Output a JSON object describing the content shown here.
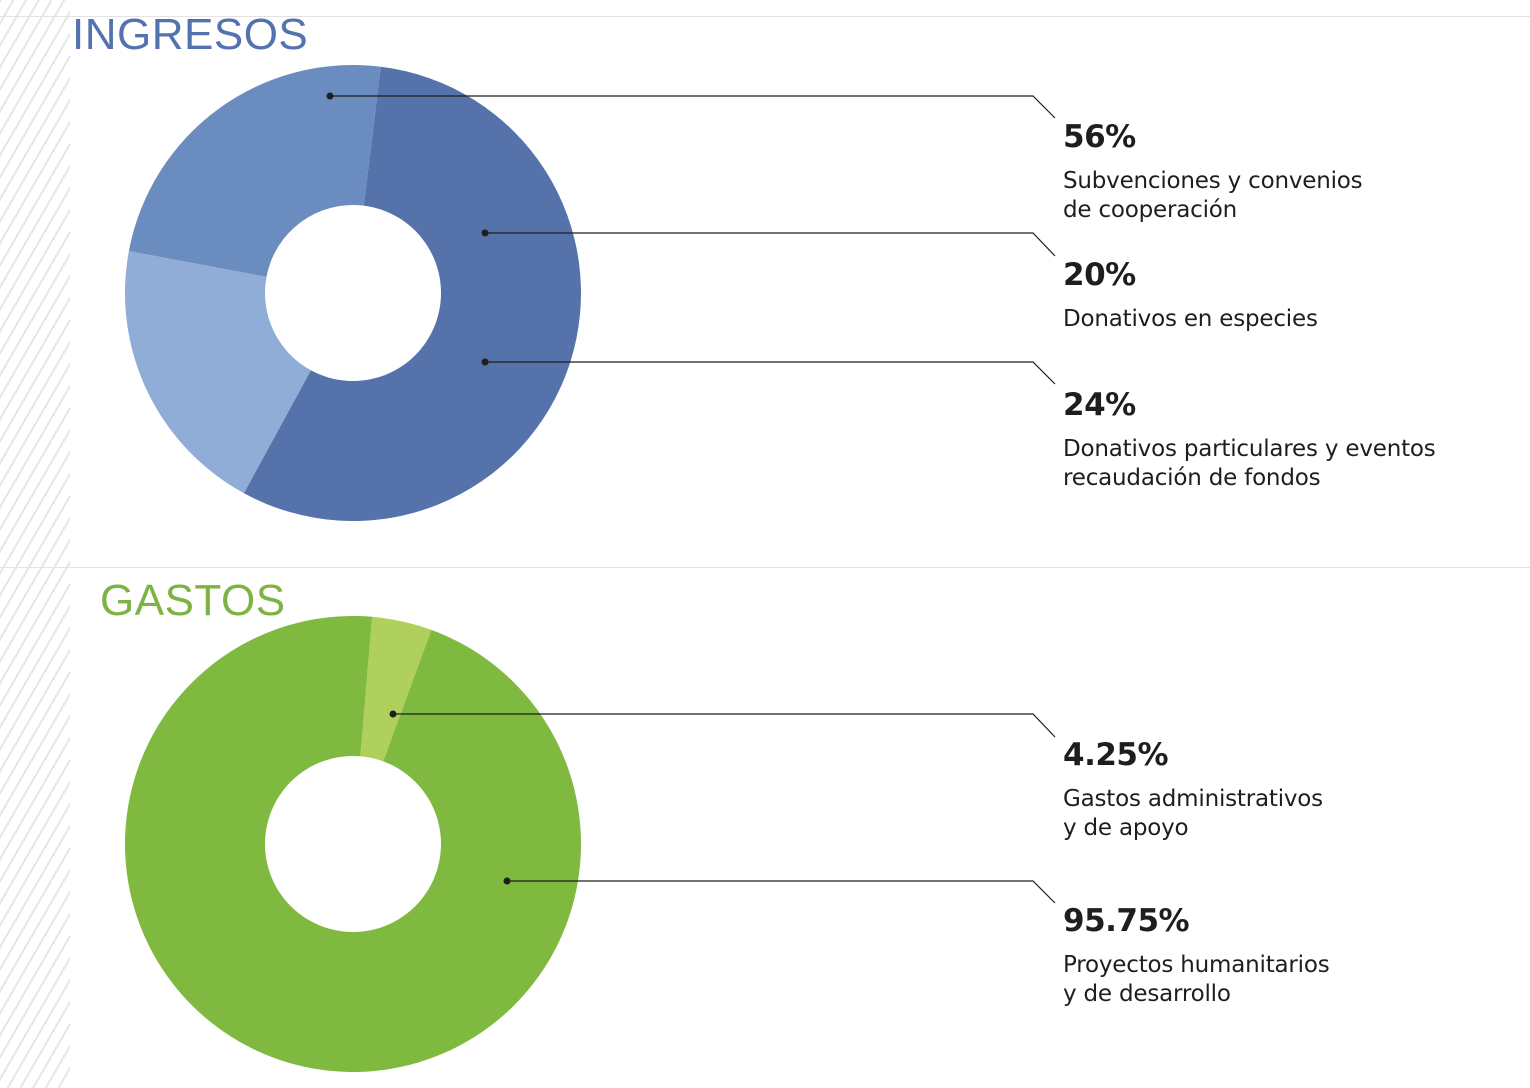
{
  "colors": {
    "ingresos_title": "#5372b0",
    "gastos_title": "#7cb342"
  },
  "chart_data": [
    {
      "type": "pie",
      "title": "INGRESOS",
      "donut": true,
      "start_angle_deg": 7,
      "slices": [
        {
          "label": "Subvenciones y convenios\nde cooperación",
          "value": 56,
          "display": "56%",
          "color": "#5672ab"
        },
        {
          "label": "Donativos en especies",
          "value": 20,
          "display": "20%",
          "color": "#8fadd6"
        },
        {
          "label": "Donativos particulares y eventos\nrecaudación de fondos",
          "value": 24,
          "display": "24%",
          "color": "#6a8cbf"
        }
      ],
      "legend_order": [
        0,
        1,
        2
      ]
    },
    {
      "type": "pie",
      "title": "GASTOS",
      "donut": true,
      "start_angle_deg": 4.8,
      "slices": [
        {
          "label": "Gastos administrativos\ny de apoyo",
          "value": 4.25,
          "display": "4.25%",
          "color": "#b0d05e"
        },
        {
          "label": "Proyectos humanitarios\ny de desarrollo",
          "value": 95.75,
          "display": "95.75%",
          "color": "#80b940"
        }
      ],
      "legend_order": [
        0,
        1
      ]
    }
  ]
}
